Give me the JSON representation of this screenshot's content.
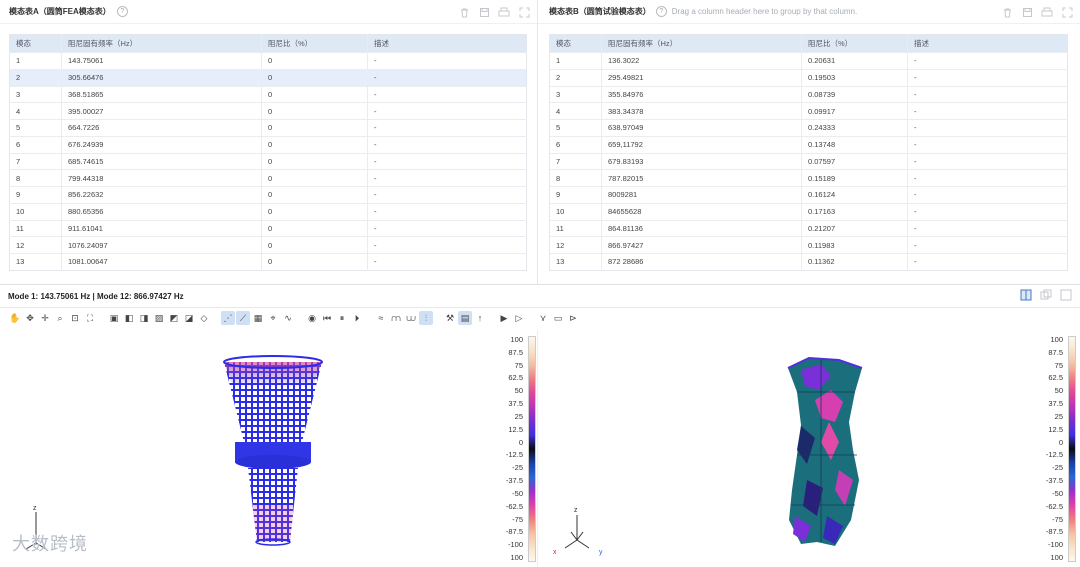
{
  "left_pane": {
    "title": "模态表A（圆筒FEA模态表）",
    "help": "?",
    "columns": [
      "模态",
      "阻尼固有频率（Hz）",
      "阻尼比（%）",
      "描述"
    ],
    "rows": [
      [
        "1",
        "143.75061",
        "0",
        "-"
      ],
      [
        "2",
        "305.66476",
        "0",
        "-"
      ],
      [
        "3",
        "368.51865",
        "0",
        "-"
      ],
      [
        "4",
        "395.00027",
        "0",
        "-"
      ],
      [
        "5",
        "664.7226",
        "0",
        "-"
      ],
      [
        "6",
        "676.24939",
        "0",
        "-"
      ],
      [
        "7",
        "685.74615",
        "0",
        "-"
      ],
      [
        "8",
        "799.44318",
        "0",
        "-"
      ],
      [
        "9",
        "856.22632",
        "0",
        "-"
      ],
      [
        "10",
        "880.65356",
        "0",
        "-"
      ],
      [
        "11",
        "911.61041",
        "0",
        "-"
      ],
      [
        "12",
        "1076.24097",
        "0",
        "-"
      ],
      [
        "13",
        "1081.00647",
        "0",
        "-"
      ]
    ],
    "selected_row": "2"
  },
  "right_pane": {
    "title": "模态表B（圆筒试验模态表）",
    "help": "?",
    "group_hint": "Drag a column header here to group by that column.",
    "columns": [
      "模态",
      "阻尼固有频率（Hz）",
      "阻尼比（%）",
      "描述"
    ],
    "rows": [
      [
        "1",
        "136.3022",
        "0.20631",
        "-"
      ],
      [
        "2",
        "295.49821",
        "0.19503",
        "-"
      ],
      [
        "3",
        "355.84976",
        "0.08739",
        "-"
      ],
      [
        "4",
        "383.34378",
        "0.09917",
        "-"
      ],
      [
        "5",
        "638.97049",
        "0.24333",
        "-"
      ],
      [
        "6",
        "659,11792",
        "0.13748",
        "-"
      ],
      [
        "7",
        "679.83193",
        "0.07597",
        "-"
      ],
      [
        "8",
        "787.82015",
        "0.15189",
        "-"
      ],
      [
        "9",
        "8009281",
        "0.16124",
        "-"
      ],
      [
        "10",
        "84655628",
        "0.17163",
        "-"
      ],
      [
        "11",
        "864.81136",
        "0.21207",
        "-"
      ],
      [
        "12",
        "866.97427",
        "0.11983",
        "-"
      ],
      [
        "13",
        "872 28686",
        "0.11362",
        "-"
      ]
    ]
  },
  "pane_tool_icons": [
    "trash-icon",
    "save-icon",
    "print-icon",
    "expand-icon"
  ],
  "mode_bar": {
    "text": "Mode 1: 143.75061 Hz | Mode 12: 866.97427 Hz"
  },
  "view_buttons": [
    "split-view-icon",
    "restore-icon",
    "maximize-icon"
  ],
  "toolbar_icons": [
    "hand-icon",
    "move-icon",
    "pan-icon",
    "zoom-icon",
    "zoom-box-icon",
    "fit-icon",
    "view-front-icon",
    "view-back-icon",
    "view-left-icon",
    "view-right-icon",
    "view-top-icon",
    "view-bottom-icon",
    "view-iso-icon",
    "wireframe-icon",
    "edit-shape-icon",
    "surface-icon",
    "camera-icon",
    "wave-icon",
    "record-icon",
    "play-back-icon",
    "pause-icon",
    "play-icon",
    "shape-1-icon",
    "shape-2-icon",
    "shape-3-icon",
    "shape-4-icon",
    "tool-icon",
    "table-icon",
    "arrow-up-icon",
    "animate-1-icon",
    "animate-2-icon",
    "vector-icon",
    "image-icon",
    "export-icon"
  ],
  "legend": {
    "labels": [
      "100",
      "87.5",
      "75",
      "62.5",
      "50",
      "37.5",
      "25",
      "12.5",
      "0",
      "-12.5",
      "-25",
      "-37.5",
      "-50",
      "-62.5",
      "-75",
      "-87.5",
      "-100",
      "100"
    ],
    "colors": [
      "#fdf8ea",
      "#f8e2c8",
      "#f4bfa1",
      "#ee7c84",
      "#e2449a",
      "#b933b8",
      "#7a2dd0",
      "#3d30df",
      "#0b0c12",
      "#1a3fa9",
      "#2966d6",
      "#9a2fcf",
      "#e03fa8",
      "#f07c7c",
      "#f4c0a0",
      "#f8e3c8",
      "#fdf8ea"
    ]
  },
  "axes": {
    "z": "z",
    "x": "x",
    "y": "y"
  },
  "watermark": "大数跨境"
}
